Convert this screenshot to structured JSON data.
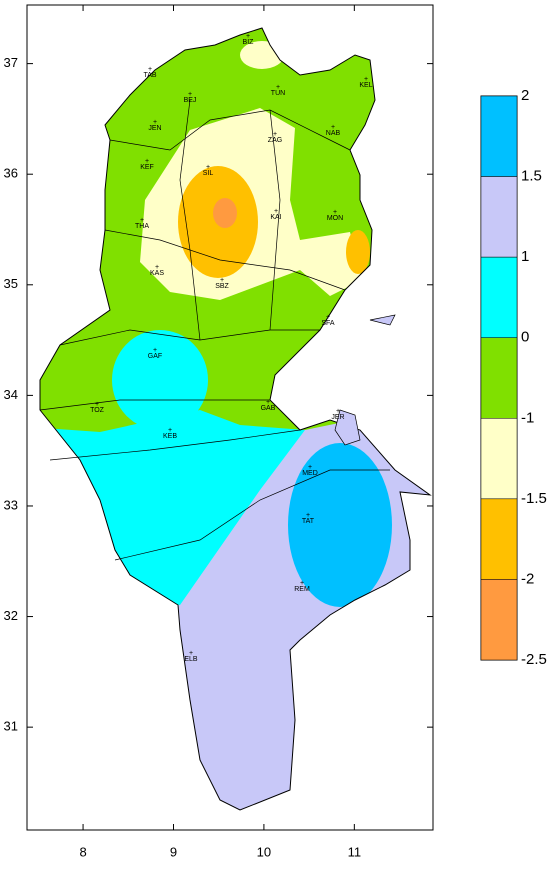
{
  "map": {
    "xlim": [
      7.38,
      11.87
    ],
    "ylim": [
      30.07,
      37.53
    ],
    "xticks": [
      8,
      9,
      10,
      11
    ],
    "yticks": [
      31,
      32,
      33,
      34,
      35,
      36,
      37
    ],
    "stations": [
      "BIZ",
      "TAB",
      "BEJ",
      "TUN",
      "KEL",
      "JEN",
      "ZAG",
      "NAB",
      "KEF",
      "SIL",
      "THA",
      "KAI",
      "MON",
      "KAS",
      "SBZ",
      "SFA",
      "GAF",
      "TOZ",
      "KEB",
      "GAB",
      "JER",
      "MED",
      "TAT",
      "REM",
      "ELB"
    ],
    "legend": {
      "levels": [
        2,
        1.5,
        1,
        0,
        -1,
        -1.5,
        -2,
        -2.5
      ],
      "colors": [
        "#00c0ff",
        "#c8c8f8",
        "#00ffff",
        "#80e000",
        "#ffffc8",
        "#ffc000",
        "#ff9a40"
      ]
    }
  }
}
